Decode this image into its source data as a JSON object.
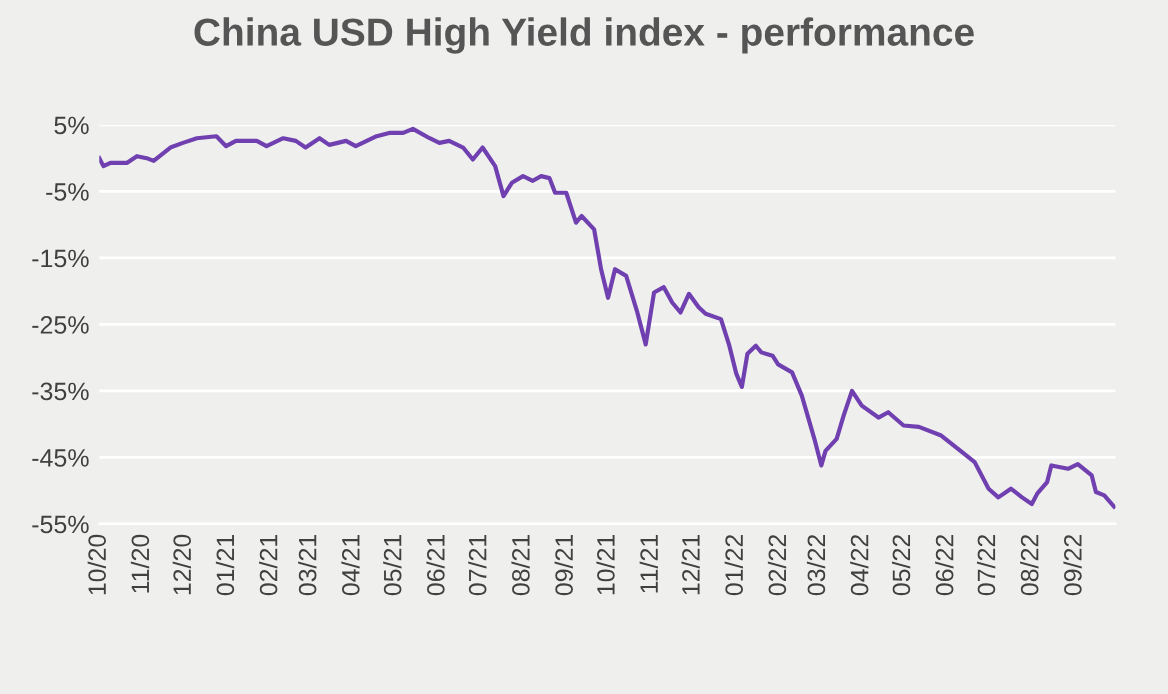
{
  "chart_data": {
    "type": "line",
    "title": "China USD High Yield index - performance",
    "x": [
      "2020-10-01",
      "2020-10-04",
      "2020-10-09",
      "2020-10-21",
      "2020-10-28",
      "2020-11-04",
      "2020-11-09",
      "2020-11-21",
      "2020-11-30",
      "2020-12-10",
      "2020-12-24",
      "2020-12-31",
      "2021-01-07",
      "2021-01-22",
      "2021-01-29",
      "2021-02-10",
      "2021-02-19",
      "2021-02-26",
      "2021-03-08",
      "2021-03-15",
      "2021-03-27",
      "2021-04-03",
      "2021-04-18",
      "2021-04-27",
      "2021-05-07",
      "2021-05-14",
      "2021-05-26",
      "2021-06-02",
      "2021-06-09",
      "2021-06-19",
      "2021-06-26",
      "2021-07-03",
      "2021-07-12",
      "2021-07-18",
      "2021-07-24",
      "2021-08-01",
      "2021-08-08",
      "2021-08-14",
      "2021-08-20",
      "2021-08-24",
      "2021-09-01",
      "2021-09-08",
      "2021-09-12",
      "2021-09-21",
      "2021-09-26",
      "2021-10-01",
      "2021-10-06",
      "2021-10-14",
      "2021-10-22",
      "2021-10-28",
      "2021-11-03",
      "2021-11-10",
      "2021-11-16",
      "2021-11-22",
      "2021-11-28",
      "2021-12-05",
      "2021-12-10",
      "2021-12-21",
      "2021-12-27",
      "2022-01-01",
      "2022-01-05",
      "2022-01-09",
      "2022-01-15",
      "2022-01-19",
      "2022-01-27",
      "2022-01-31",
      "2022-02-10",
      "2022-02-17",
      "2022-02-26",
      "2022-03-03",
      "2022-03-06",
      "2022-03-14",
      "2022-03-19",
      "2022-03-25",
      "2022-04-01",
      "2022-04-13",
      "2022-04-20",
      "2022-05-01",
      "2022-05-12",
      "2022-05-28",
      "2022-06-12",
      "2022-06-21",
      "2022-07-01",
      "2022-07-08",
      "2022-07-17",
      "2022-07-25",
      "2022-08-01",
      "2022-08-05",
      "2022-08-12",
      "2022-08-15",
      "2022-08-27",
      "2022-09-03",
      "2022-09-13",
      "2022-09-16",
      "2022-09-22",
      "2022-09-29"
    ],
    "series": [
      {
        "color": "#7040b0",
        "values": [
          0.0,
          -1.2,
          -0.7,
          -0.7,
          0.3,
          0.0,
          -0.4,
          1.6,
          2.3,
          3.0,
          3.3,
          1.8,
          2.6,
          2.6,
          1.8,
          3.0,
          2.6,
          1.6,
          3.0,
          2.0,
          2.6,
          1.8,
          3.3,
          3.8,
          3.8,
          4.4,
          3.0,
          2.3,
          2.6,
          1.6,
          -0.2,
          1.6,
          -1.2,
          -5.7,
          -3.7,
          -2.7,
          -3.4,
          -2.7,
          -3.0,
          -5.2,
          -5.2,
          -9.7,
          -8.7,
          -10.7,
          -16.7,
          -21.0,
          -16.7,
          -17.7,
          -23.2,
          -28.0,
          -20.2,
          -19.4,
          -21.7,
          -23.2,
          -20.4,
          -22.4,
          -23.4,
          -24.2,
          -28.2,
          -32.4,
          -34.4,
          -29.4,
          -28.2,
          -29.2,
          -29.7,
          -31.0,
          -32.2,
          -35.7,
          -42.2,
          -46.2,
          -44.0,
          -42.2,
          -38.7,
          -35.0,
          -37.2,
          -39.0,
          -38.2,
          -40.2,
          -40.4,
          -41.7,
          -44.2,
          -45.7,
          -49.7,
          -51.0,
          -49.7,
          -51.0,
          -52.0,
          -50.4,
          -48.7,
          -46.2,
          -46.7,
          -46.0,
          -47.7,
          -50.2,
          -50.7,
          -52.4
        ]
      }
    ],
    "xlim": [
      "2020-10-01",
      "2022-09-30"
    ],
    "xticks": [
      {
        "value": "2020-10-01",
        "label": "10/20"
      },
      {
        "value": "2020-11-01",
        "label": "11/20"
      },
      {
        "value": "2020-12-01",
        "label": "12/20"
      },
      {
        "value": "2021-01-01",
        "label": "01/21"
      },
      {
        "value": "2021-02-01",
        "label": "02/21"
      },
      {
        "value": "2021-03-01",
        "label": "03/21"
      },
      {
        "value": "2021-04-01",
        "label": "04/21"
      },
      {
        "value": "2021-05-01",
        "label": "05/21"
      },
      {
        "value": "2021-06-01",
        "label": "06/21"
      },
      {
        "value": "2021-07-01",
        "label": "07/21"
      },
      {
        "value": "2021-08-01",
        "label": "08/21"
      },
      {
        "value": "2021-09-01",
        "label": "09/21"
      },
      {
        "value": "2021-10-01",
        "label": "10/21"
      },
      {
        "value": "2021-11-01",
        "label": "11/21"
      },
      {
        "value": "2021-12-01",
        "label": "12/21"
      },
      {
        "value": "2022-01-01",
        "label": "01/22"
      },
      {
        "value": "2022-02-01",
        "label": "02/22"
      },
      {
        "value": "2022-03-01",
        "label": "03/22"
      },
      {
        "value": "2022-04-01",
        "label": "04/22"
      },
      {
        "value": "2022-05-01",
        "label": "05/22"
      },
      {
        "value": "2022-06-01",
        "label": "06/22"
      },
      {
        "value": "2022-07-01",
        "label": "07/22"
      },
      {
        "value": "2022-08-01",
        "label": "08/22"
      },
      {
        "value": "2022-09-01",
        "label": "09/22"
      }
    ],
    "ylim": [
      -55,
      5
    ],
    "yticks": [
      {
        "value": 5,
        "label": "5%"
      },
      {
        "value": -5,
        "label": "-5%"
      },
      {
        "value": -15,
        "label": "-15%"
      },
      {
        "value": -25,
        "label": "-25%"
      },
      {
        "value": -35,
        "label": "-35%"
      },
      {
        "value": -45,
        "label": "-45%"
      },
      {
        "value": -55,
        "label": "-55%"
      }
    ],
    "grid": "y",
    "legend": false,
    "marker": "none",
    "line_style": "solid"
  }
}
